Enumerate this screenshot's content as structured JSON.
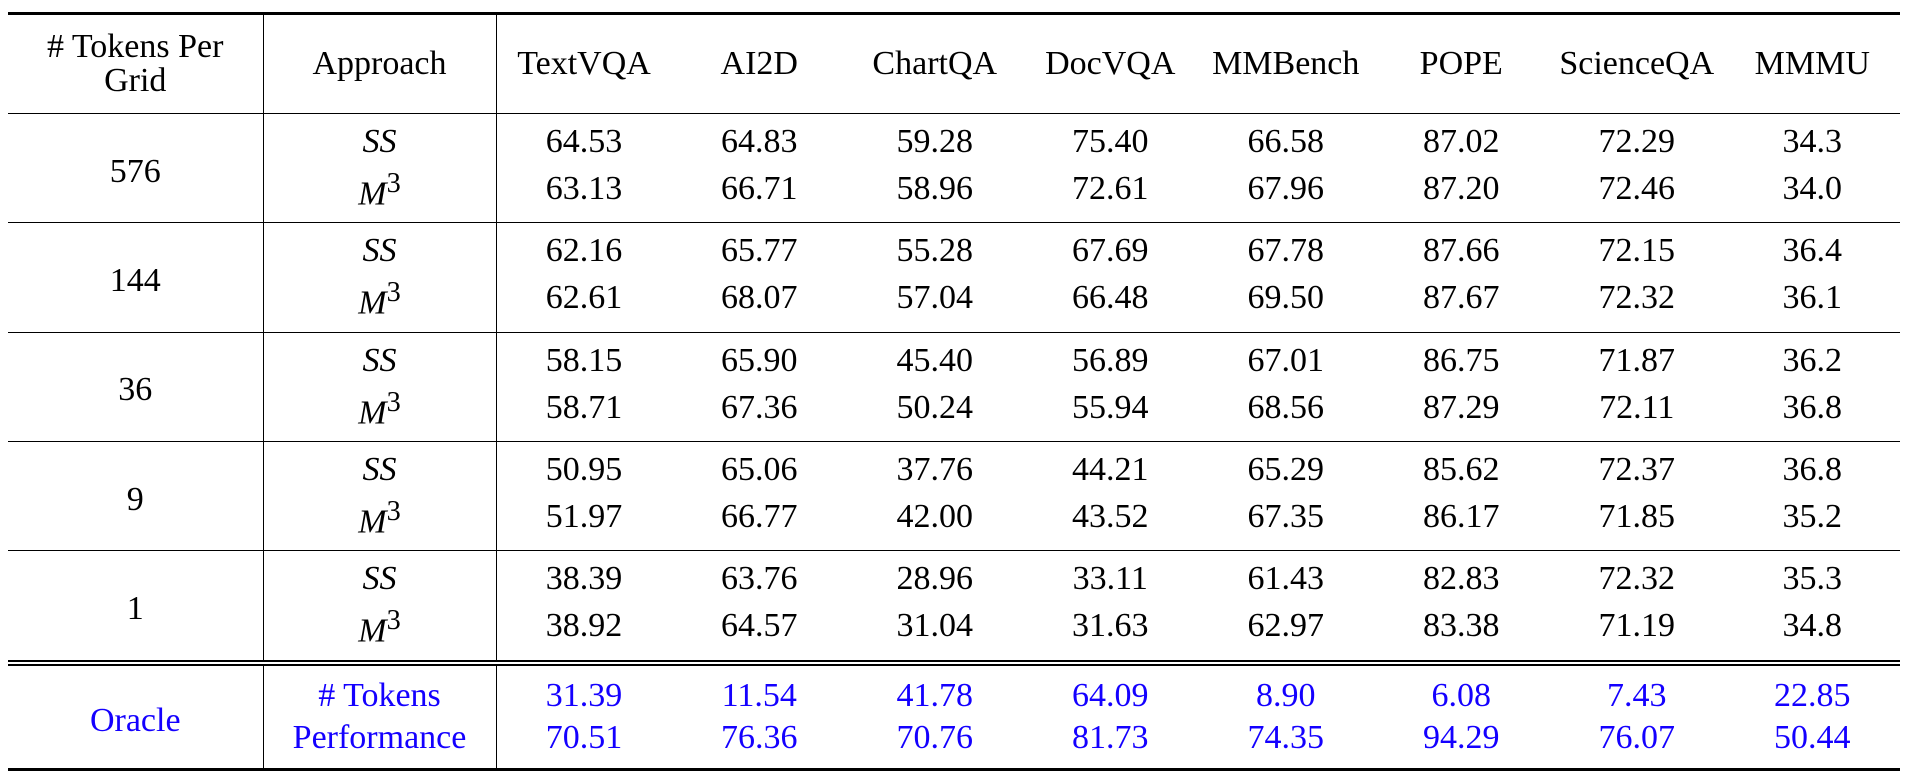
{
  "headers": [
    "# Tokens Per Grid",
    "Approach",
    "TextVQA",
    "AI2D",
    "ChartQA",
    "DocVQA",
    "MMBench",
    "POPE",
    "ScienceQA",
    "MMMU"
  ],
  "groups": [
    {
      "tokens": "576",
      "rows": [
        {
          "approach": "SS",
          "sup": "",
          "values": [
            "64.53",
            "64.83",
            "59.28",
            "75.40",
            "66.58",
            "87.02",
            "72.29",
            "34.3"
          ]
        },
        {
          "approach": "M",
          "sup": "3",
          "values": [
            "63.13",
            "66.71",
            "58.96",
            "72.61",
            "67.96",
            "87.20",
            "72.46",
            "34.0"
          ]
        }
      ]
    },
    {
      "tokens": "144",
      "rows": [
        {
          "approach": "SS",
          "sup": "",
          "values": [
            "62.16",
            "65.77",
            "55.28",
            "67.69",
            "67.78",
            "87.66",
            "72.15",
            "36.4"
          ]
        },
        {
          "approach": "M",
          "sup": "3",
          "values": [
            "62.61",
            "68.07",
            "57.04",
            "66.48",
            "69.50",
            "87.67",
            "72.32",
            "36.1"
          ]
        }
      ]
    },
    {
      "tokens": "36",
      "rows": [
        {
          "approach": "SS",
          "sup": "",
          "values": [
            "58.15",
            "65.90",
            "45.40",
            "56.89",
            "67.01",
            "86.75",
            "71.87",
            "36.2"
          ]
        },
        {
          "approach": "M",
          "sup": "3",
          "values": [
            "58.71",
            "67.36",
            "50.24",
            "55.94",
            "68.56",
            "87.29",
            "72.11",
            "36.8"
          ]
        }
      ]
    },
    {
      "tokens": "9",
      "rows": [
        {
          "approach": "SS",
          "sup": "",
          "values": [
            "50.95",
            "65.06",
            "37.76",
            "44.21",
            "65.29",
            "85.62",
            "72.37",
            "36.8"
          ]
        },
        {
          "approach": "M",
          "sup": "3",
          "values": [
            "51.97",
            "66.77",
            "42.00",
            "43.52",
            "67.35",
            "86.17",
            "71.85",
            "35.2"
          ]
        }
      ]
    },
    {
      "tokens": "1",
      "rows": [
        {
          "approach": "SS",
          "sup": "",
          "values": [
            "38.39",
            "63.76",
            "28.96",
            "33.11",
            "61.43",
            "82.83",
            "72.32",
            "35.3"
          ]
        },
        {
          "approach": "M",
          "sup": "3",
          "values": [
            "38.92",
            "64.57",
            "31.04",
            "31.63",
            "62.97",
            "83.38",
            "71.19",
            "34.8"
          ]
        }
      ]
    }
  ],
  "oracle": {
    "label": "Oracle",
    "rows": [
      {
        "approach": "# Tokens",
        "values": [
          "31.39",
          "11.54",
          "41.78",
          "64.09",
          "8.90",
          "6.08",
          "7.43",
          "22.85"
        ]
      },
      {
        "approach": "Performance",
        "values": [
          "70.51",
          "76.36",
          "70.76",
          "81.73",
          "74.35",
          "94.29",
          "76.07",
          "50.44"
        ]
      }
    ]
  },
  "colors": {
    "oracle_text": "#1400ff"
  }
}
